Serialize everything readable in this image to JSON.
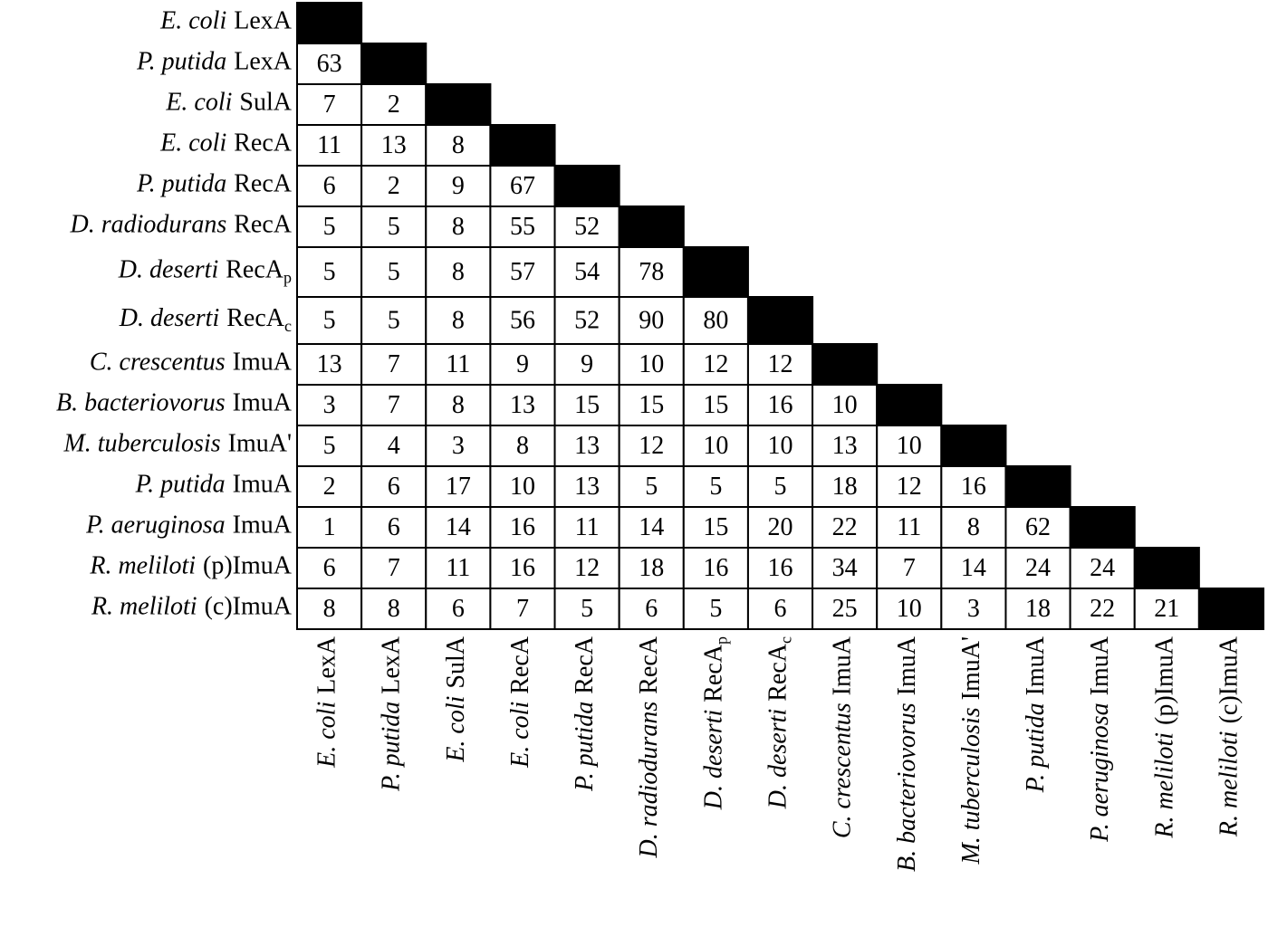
{
  "labels": [
    {
      "species": "E. coli",
      "protein": "LexA"
    },
    {
      "species": "P. putida",
      "protein": "LexA"
    },
    {
      "species": "E. coli",
      "protein": "SulA"
    },
    {
      "species": "E. coli",
      "protein": "RecA"
    },
    {
      "species": "P. putida",
      "protein": "RecA"
    },
    {
      "species": "D. radiodurans",
      "protein": "RecA"
    },
    {
      "species": "D. deserti",
      "protein": "RecA",
      "sub": "p"
    },
    {
      "species": "D. deserti",
      "protein": "RecA",
      "sub": "c"
    },
    {
      "species": "C. crescentus",
      "protein": "ImuA"
    },
    {
      "species": "B. bacteriovorus",
      "protein": "ImuA"
    },
    {
      "species": "M. tuberculosis",
      "protein": "ImuA'"
    },
    {
      "species": "P. putida",
      "protein": "ImuA"
    },
    {
      "species": "P. aeruginosa",
      "protein": "ImuA"
    },
    {
      "species": "R. meliloti",
      "protein": "(p)ImuA"
    },
    {
      "species": "R. meliloti",
      "protein": "(c)ImuA"
    }
  ],
  "matrix": {
    "rows": [
      [],
      [
        63
      ],
      [
        7,
        2
      ],
      [
        11,
        13,
        8
      ],
      [
        6,
        2,
        9,
        67
      ],
      [
        5,
        5,
        8,
        55,
        52
      ],
      [
        5,
        5,
        8,
        57,
        54,
        78
      ],
      [
        5,
        5,
        8,
        56,
        52,
        90,
        80
      ],
      [
        13,
        7,
        11,
        9,
        9,
        10,
        12,
        12
      ],
      [
        3,
        7,
        8,
        13,
        15,
        15,
        15,
        16,
        10
      ],
      [
        5,
        4,
        3,
        8,
        13,
        12,
        10,
        10,
        13,
        10
      ],
      [
        2,
        6,
        17,
        10,
        13,
        5,
        5,
        5,
        18,
        12,
        16
      ],
      [
        1,
        6,
        14,
        16,
        11,
        14,
        15,
        20,
        22,
        11,
        8,
        62
      ],
      [
        6,
        7,
        11,
        16,
        12,
        18,
        16,
        16,
        34,
        7,
        14,
        24,
        24
      ],
      [
        8,
        8,
        6,
        7,
        5,
        6,
        5,
        6,
        25,
        10,
        3,
        18,
        22,
        21
      ]
    ]
  }
}
